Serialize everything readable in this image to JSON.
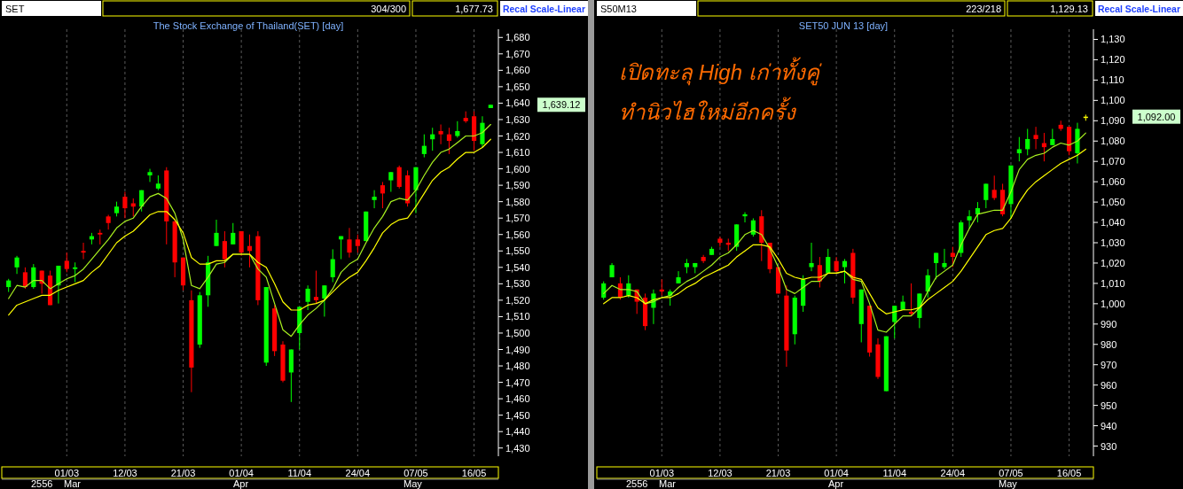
{
  "chart_data": [
    {
      "type": "candlestick",
      "title": "The Stock Exchange of Thailand(SET) [day]",
      "categories": [
        null,
        null,
        null,
        null,
        null,
        null,
        null,
        "01/03",
        null,
        null,
        null,
        null,
        null,
        null,
        "12/03",
        null,
        null,
        null,
        null,
        null,
        null,
        "21/03",
        null,
        null,
        null,
        null,
        null,
        null,
        "01/04",
        null,
        null,
        null,
        null,
        null,
        null,
        "11/04",
        null,
        null,
        null,
        null,
        null,
        null,
        "24/04",
        null,
        null,
        null,
        null,
        null,
        null,
        "07/05",
        null,
        null,
        null,
        null,
        null,
        null,
        "16/05",
        null,
        null
      ],
      "ohlc": [
        [
          1528,
          1533,
          1525,
          1532
        ],
        [
          1540,
          1547,
          1536,
          1546
        ],
        [
          1537,
          1540,
          1527,
          1528
        ],
        [
          1528,
          1542,
          1527,
          1540
        ],
        [
          1538,
          1538,
          1524,
          1530
        ],
        [
          1535,
          1538,
          1517,
          1517
        ],
        [
          1529,
          1541,
          1518,
          1541
        ],
        [
          1544,
          1549,
          1537,
          1539
        ],
        [
          1539,
          1543,
          1531,
          1540
        ],
        [
          1550,
          1555,
          1545,
          1549
        ],
        [
          1557,
          1561,
          1554,
          1559
        ],
        [
          1561,
          1563,
          1554,
          1560
        ],
        [
          1571,
          1572,
          1563,
          1567
        ],
        [
          1573,
          1580,
          1571,
          1577
        ],
        [
          1583,
          1586,
          1570,
          1576
        ],
        [
          1579,
          1582,
          1571,
          1577
        ],
        [
          1577,
          1587,
          1574,
          1587
        ],
        [
          1596,
          1600,
          1592,
          1598
        ],
        [
          1588,
          1596,
          1587,
          1591
        ],
        [
          1599,
          1601,
          1554,
          1568
        ],
        [
          1568,
          1569,
          1534,
          1543
        ],
        [
          1546,
          1546,
          1526,
          1529
        ],
        [
          1520,
          1526,
          1464,
          1479
        ],
        [
          1493,
          1525,
          1491,
          1523
        ],
        [
          1523,
          1547,
          1516,
          1543
        ],
        [
          1553,
          1569,
          1553,
          1561
        ],
        [
          1556,
          1562,
          1540,
          1545
        ],
        [
          1554,
          1567,
          1554,
          1561
        ],
        [
          1562,
          1562,
          1547,
          1549
        ],
        [
          1553,
          1560,
          1540,
          1550
        ],
        [
          1559,
          1562,
          1517,
          1520
        ],
        [
          1482,
          1528,
          1480,
          1528
        ],
        [
          1515,
          1517,
          1486,
          1489
        ],
        [
          1493,
          1495,
          1470,
          1471
        ],
        [
          1476,
          1490,
          1458,
          1490
        ],
        [
          1500,
          1516,
          1490,
          1516
        ],
        [
          1519,
          1529,
          1514,
          1527
        ],
        [
          1522,
          1538,
          1518,
          1520
        ],
        [
          1521,
          1529,
          1510,
          1529
        ],
        [
          1534,
          1551,
          1531,
          1545
        ],
        [
          1557,
          1559,
          1545,
          1559
        ],
        [
          1557,
          1564,
          1546,
          1549
        ],
        [
          1557,
          1560,
          1549,
          1553
        ],
        [
          1556,
          1574,
          1556,
          1574
        ],
        [
          1581,
          1587,
          1576,
          1583
        ],
        [
          1590,
          1592,
          1576,
          1585
        ],
        [
          1593,
          1598,
          1586,
          1598
        ],
        [
          1601,
          1602,
          1588,
          1589
        ],
        [
          1596,
          1599,
          1577,
          1579
        ],
        [
          1587,
          1601,
          1573,
          1601
        ],
        [
          1609,
          1621,
          1607,
          1614
        ],
        [
          1618,
          1625,
          1611,
          1621
        ],
        [
          1623,
          1627,
          1615,
          1621
        ],
        [
          1621,
          1625,
          1609,
          1617
        ],
        [
          1620,
          1629,
          1619,
          1623
        ],
        [
          1631,
          1635,
          1628,
          1629
        ],
        [
          1632,
          1635,
          1611,
          1617
        ],
        [
          1615,
          1632,
          1613,
          1628
        ],
        [
          1637,
          1639,
          1637,
          1639
        ]
      ],
      "colors": [
        "#00ff00",
        "#00ff00",
        "#ff0000",
        "#00ff00",
        "#ff0000",
        "#ff0000",
        "#00ff00",
        "#ff0000",
        "#00ff00",
        "#ff0000",
        "#00ff00",
        "#ff0000",
        "#ff0000",
        "#00ff00",
        "#ff0000",
        "#ff0000",
        "#00ff00",
        "#00ff00",
        "#00ff00",
        "#ff0000",
        "#ff0000",
        "#ff0000",
        "#ff0000",
        "#00ff00",
        "#00ff00",
        "#00ff00",
        "#ff0000",
        "#00ff00",
        "#ff0000",
        "#ff0000",
        "#ff0000",
        "#00ff00",
        "#ff0000",
        "#ff0000",
        "#00ff00",
        "#00ff00",
        "#00ff00",
        "#ff0000",
        "#00ff00",
        "#00ff00",
        "#00ff00",
        "#ff0000",
        "#ff0000",
        "#00ff00",
        "#00ff00",
        "#ff0000",
        "#00ff00",
        "#ff0000",
        "#ff0000",
        "#00ff00",
        "#00ff00",
        "#00ff00",
        "#ff0000",
        "#ff0000",
        "#00ff00",
        "#ff0000",
        "#ff0000",
        "#00ff00",
        "#00ff00"
      ],
      "series": [
        {
          "type": "line",
          "color": "#a8f020",
          "values": [
            1521,
            1529,
            1528,
            1532,
            1532,
            1527,
            1530,
            1533,
            1535,
            1539,
            1545,
            1551,
            1557,
            1564,
            1568,
            1570,
            1577,
            1583,
            1585,
            1582,
            1573,
            1557,
            1529,
            1527,
            1534,
            1542,
            1543,
            1548,
            1548,
            1548,
            1539,
            1534,
            1518,
            1502,
            1498,
            1505,
            1511,
            1515,
            1520,
            1527,
            1537,
            1542,
            1545,
            1555,
            1564,
            1571,
            1580,
            1582,
            1581,
            1587,
            1596,
            1604,
            1610,
            1612,
            1616,
            1620,
            1620,
            1622,
            1627
          ]
        },
        {
          "type": "line",
          "color": "#ffff00",
          "values": [
            1511,
            1517,
            1519,
            1521,
            1523,
            1523,
            1526,
            1528,
            1530,
            1532,
            1537,
            1541,
            1548,
            1555,
            1559,
            1562,
            1567,
            1572,
            1574,
            1574,
            1569,
            1561,
            1546,
            1542,
            1542,
            1544,
            1544,
            1548,
            1548,
            1548,
            1543,
            1540,
            1530,
            1519,
            1514,
            1514,
            1517,
            1518,
            1520,
            1525,
            1530,
            1534,
            1537,
            1544,
            1552,
            1561,
            1566,
            1569,
            1570,
            1577,
            1585,
            1593,
            1598,
            1601,
            1606,
            1610,
            1610,
            1613,
            1618
          ]
        }
      ],
      "ylim": [
        1425,
        1685
      ],
      "yticks": [
        {
          "value": 1430,
          "label": "1,430"
        },
        {
          "value": 1440,
          "label": "1,440"
        },
        {
          "value": 1450,
          "label": "1,450"
        },
        {
          "value": 1460,
          "label": "1,460"
        },
        {
          "value": 1470,
          "label": "1,470"
        },
        {
          "value": 1480,
          "label": "1,480"
        },
        {
          "value": 1490,
          "label": "1,490"
        },
        {
          "value": 1500,
          "label": "1,500"
        },
        {
          "value": 1510,
          "label": "1,510"
        },
        {
          "value": 1520,
          "label": "1,520"
        },
        {
          "value": 1530,
          "label": "1,530"
        },
        {
          "value": 1540,
          "label": "1,540"
        },
        {
          "value": 1550,
          "label": "1,550"
        },
        {
          "value": 1560,
          "label": "1,560"
        },
        {
          "value": 1570,
          "label": "1,570"
        },
        {
          "value": 1580,
          "label": "1,580"
        },
        {
          "value": 1590,
          "label": "1,590"
        },
        {
          "value": 1600,
          "label": "1,600"
        },
        {
          "value": 1610,
          "label": "1,610"
        },
        {
          "value": 1620,
          "label": "1,620"
        },
        {
          "value": 1630,
          "label": "1,630"
        },
        {
          "value": 1640,
          "label": "1,640"
        },
        {
          "value": 1650,
          "label": "1,650"
        },
        {
          "value": 1660,
          "label": "1,660"
        },
        {
          "value": 1670,
          "label": "1,670"
        },
        {
          "value": 1680,
          "label": "1,680"
        }
      ],
      "grid": "x",
      "annotations": [
        "SET",
        "304/300",
        "1,677.73",
        "Recal Scale-Linear",
        "2556",
        "Mar",
        "Apr",
        "May",
        "1,639.12"
      ]
    },
    {
      "type": "candlestick",
      "title": "SET50 JUN 13  [day]",
      "categories": [
        null,
        null,
        null,
        null,
        null,
        null,
        null,
        "01/03",
        null,
        null,
        null,
        null,
        null,
        null,
        "12/03",
        null,
        null,
        null,
        null,
        null,
        null,
        "21/03",
        null,
        null,
        null,
        null,
        null,
        null,
        "01/04",
        null,
        null,
        null,
        null,
        null,
        null,
        "11/04",
        null,
        null,
        null,
        null,
        null,
        null,
        "24/04",
        null,
        null,
        null,
        null,
        null,
        null,
        "07/05",
        null,
        null,
        null,
        null,
        null,
        null,
        "16/05",
        null,
        null
      ],
      "ohlc": [
        [
          1003,
          1011,
          1002,
          1010
        ],
        [
          1013,
          1020,
          1013,
          1019
        ],
        [
          1010,
          1013,
          1002,
          1003
        ],
        [
          1004,
          1014,
          1003,
          1010
        ],
        [
          1007,
          1007,
          995,
          1001
        ],
        [
          1003,
          1005,
          987,
          989
        ],
        [
          998,
          1007,
          990,
          1005
        ],
        [
          1007,
          1012,
          1004,
          1006
        ],
        [
          1004,
          1007,
          999,
          1006
        ],
        [
          1010,
          1016,
          1010,
          1013
        ],
        [
          1018,
          1022,
          1015,
          1020
        ],
        [
          1018,
          1020,
          1015,
          1020
        ],
        [
          1023,
          1024,
          1020,
          1021
        ],
        [
          1024,
          1028,
          1024,
          1027
        ],
        [
          1032,
          1033,
          1028,
          1030
        ],
        [
          1030,
          1032,
          1026,
          1029
        ],
        [
          1028,
          1039,
          1026,
          1039
        ],
        [
          1043,
          1045,
          1040,
          1044
        ],
        [
          1034,
          1042,
          1033,
          1041
        ],
        [
          1043,
          1046,
          1021,
          1030
        ],
        [
          1030,
          1030,
          1015,
          1017
        ],
        [
          1018,
          1018,
          1005,
          1005
        ],
        [
          1004,
          1009,
          969,
          977
        ],
        [
          985,
          1004,
          980,
          1003
        ],
        [
          999,
          1014,
          996,
          1012
        ],
        [
          1018,
          1030,
          1016,
          1020
        ],
        [
          1019,
          1023,
          1008,
          1011
        ],
        [
          1015,
          1027,
          1015,
          1023
        ],
        [
          1021,
          1023,
          1015,
          1016
        ],
        [
          1018,
          1022,
          1010,
          1021
        ],
        [
          1025,
          1027,
          1000,
          1003
        ],
        [
          990,
          1007,
          981,
          1007
        ],
        [
          999,
          999,
          974,
          976
        ],
        [
          980,
          983,
          963,
          964
        ],
        [
          957,
          984,
          957,
          984
        ],
        [
          991,
          999,
          983,
          999
        ],
        [
          997,
          1004,
          997,
          1001
        ],
        [
          996,
          1010,
          994,
          995
        ],
        [
          993,
          1005,
          988,
          1005
        ],
        [
          1006,
          1017,
          1003,
          1014
        ],
        [
          1020,
          1025,
          1012,
          1025
        ],
        [
          1018,
          1027,
          1017,
          1020
        ],
        [
          1025,
          1028,
          1018,
          1023
        ],
        [
          1025,
          1041,
          1023,
          1040
        ],
        [
          1041,
          1046,
          1037,
          1043
        ],
        [
          1044,
          1050,
          1040,
          1047
        ],
        [
          1051,
          1059,
          1047,
          1059
        ],
        [
          1056,
          1063,
          1051,
          1052
        ],
        [
          1056,
          1059,
          1043,
          1044
        ],
        [
          1049,
          1068,
          1042,
          1068
        ],
        [
          1074,
          1082,
          1070,
          1076
        ],
        [
          1076,
          1086,
          1073,
          1081
        ],
        [
          1083,
          1087,
          1076,
          1081
        ],
        [
          1079,
          1084,
          1070,
          1077
        ],
        [
          1078,
          1086,
          1078,
          1081
        ],
        [
          1088,
          1090,
          1085,
          1086
        ],
        [
          1087,
          1087,
          1073,
          1075
        ],
        [
          1074,
          1089,
          1069,
          1086
        ],
        [
          1092,
          1093,
          1090,
          1092
        ]
      ],
      "colors": [
        "#00ff00",
        "#00ff00",
        "#ff0000",
        "#00ff00",
        "#ff0000",
        "#ff0000",
        "#00ff00",
        "#ff0000",
        "#00ff00",
        "#00ff00",
        "#00ff00",
        "#00ff00",
        "#ff0000",
        "#00ff00",
        "#ff0000",
        "#ff0000",
        "#00ff00",
        "#00ff00",
        "#00ff00",
        "#ff0000",
        "#ff0000",
        "#ff0000",
        "#ff0000",
        "#00ff00",
        "#00ff00",
        "#00ff00",
        "#ff0000",
        "#00ff00",
        "#ff0000",
        "#00ff00",
        "#ff0000",
        "#00ff00",
        "#ff0000",
        "#ff0000",
        "#00ff00",
        "#00ff00",
        "#00ff00",
        "#ff0000",
        "#00ff00",
        "#00ff00",
        "#00ff00",
        "#00ff00",
        "#ff0000",
        "#00ff00",
        "#00ff00",
        "#00ff00",
        "#00ff00",
        "#ff0000",
        "#ff0000",
        "#00ff00",
        "#00ff00",
        "#00ff00",
        "#ff0000",
        "#ff0000",
        "#00ff00",
        "#ff0000",
        "#ff0000",
        "#00ff00",
        "#ffff00"
      ],
      "series": [
        {
          "type": "line",
          "color": "#a8f020",
          "values": [
            1005,
            1009,
            1007,
            1007,
            1006,
            1000,
            1001,
            1003,
            1004,
            1008,
            1011,
            1013,
            1016,
            1019,
            1023,
            1025,
            1029,
            1034,
            1036,
            1034,
            1027,
            1018,
            1007,
            1005,
            1008,
            1011,
            1011,
            1015,
            1015,
            1016,
            1012,
            1011,
            1000,
            987,
            986,
            990,
            994,
            994,
            998,
            1006,
            1013,
            1016,
            1019,
            1029,
            1037,
            1044,
            1045,
            1046,
            1046,
            1055,
            1066,
            1071,
            1073,
            1074,
            1077,
            1079,
            1078,
            1080,
            1084
          ]
        },
        {
          "type": "line",
          "color": "#ffff00",
          "values": [
            1000,
            1003,
            1003,
            1004,
            1003,
            1000,
            1002,
            1003,
            1003,
            1005,
            1008,
            1010,
            1013,
            1015,
            1017,
            1019,
            1023,
            1026,
            1029,
            1029,
            1028,
            1022,
            1015,
            1013,
            1012,
            1013,
            1013,
            1015,
            1015,
            1016,
            1013,
            1012,
            1005,
            998,
            995,
            996,
            997,
            997,
            998,
            1002,
            1005,
            1008,
            1011,
            1016,
            1022,
            1028,
            1034,
            1036,
            1037,
            1042,
            1050,
            1056,
            1060,
            1063,
            1066,
            1069,
            1071,
            1073,
            1076
          ]
        }
      ],
      "ylim": [
        925,
        1135
      ],
      "yticks": [
        {
          "value": 930,
          "label": "930"
        },
        {
          "value": 940,
          "label": "940"
        },
        {
          "value": 950,
          "label": "950"
        },
        {
          "value": 960,
          "label": "960"
        },
        {
          "value": 970,
          "label": "970"
        },
        {
          "value": 980,
          "label": "980"
        },
        {
          "value": 990,
          "label": "990"
        },
        {
          "value": 1000,
          "label": "1,000"
        },
        {
          "value": 1010,
          "label": "1,010"
        },
        {
          "value": 1020,
          "label": "1,020"
        },
        {
          "value": 1030,
          "label": "1,030"
        },
        {
          "value": 1040,
          "label": "1,040"
        },
        {
          "value": 1050,
          "label": "1,050"
        },
        {
          "value": 1060,
          "label": "1,060"
        },
        {
          "value": 1070,
          "label": "1,070"
        },
        {
          "value": 1080,
          "label": "1,080"
        },
        {
          "value": 1090,
          "label": "1,090"
        },
        {
          "value": 1100,
          "label": "1,100"
        },
        {
          "value": 1110,
          "label": "1,110"
        },
        {
          "value": 1120,
          "label": "1,120"
        },
        {
          "value": 1130,
          "label": "1,130"
        }
      ],
      "grid": "x",
      "annotations": [
        "S50M13",
        "223/218",
        "1,129.13",
        "Recal Scale-Linear",
        "2556",
        "Mar",
        "Apr",
        "May",
        "เปิดทะลุ High เก่าทั้งคู่",
        "ทำนิวไฮใหม่อีกครั้ง",
        "1,092.00"
      ]
    }
  ]
}
